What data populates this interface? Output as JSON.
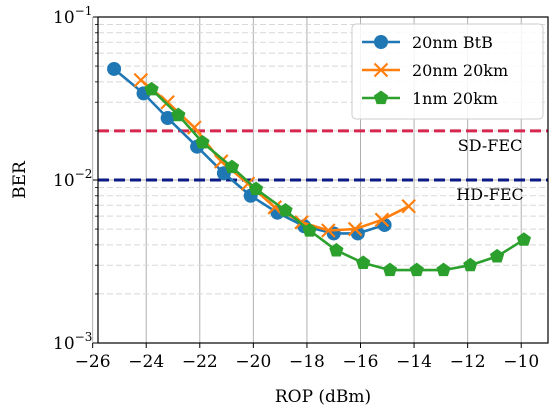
{
  "chart_data": {
    "type": "line",
    "xlabel": "ROP (dBm)",
    "ylabel": "BER",
    "xlim": [
      -25.8,
      -9.0
    ],
    "ylim": [
      0.001,
      0.1
    ],
    "yscale": "log",
    "grid": true,
    "legend_position": "top-right",
    "xticks": [
      -26,
      -24,
      -22,
      -20,
      -18,
      -16,
      -14,
      -12,
      -10
    ],
    "xtick_labels": [
      "−26",
      "−24",
      "−22",
      "−20",
      "−18",
      "−16",
      "−14",
      "−12",
      "−10"
    ],
    "yticks": [
      {
        "value": 0.1,
        "base": "10",
        "exp": "−1"
      },
      {
        "value": 0.01,
        "base": "10",
        "exp": "−2"
      },
      {
        "value": 0.001,
        "base": "10",
        "exp": "−3"
      }
    ],
    "series": [
      {
        "name": "20nm BtB",
        "color": "#1f77b4",
        "marker": "circle",
        "x": [
          -25.2,
          -24.1,
          -23.2,
          -22.1,
          -21.1,
          -20.1,
          -19.1,
          -18.1,
          -17.0,
          -16.1,
          -15.1
        ],
        "y": [
          0.048,
          0.034,
          0.024,
          0.016,
          0.011,
          0.008,
          0.0063,
          0.0052,
          0.0047,
          0.0047,
          0.0053
        ]
      },
      {
        "name": "20nm 20km",
        "color": "#ff7f0e",
        "marker": "x",
        "x": [
          -24.2,
          -23.2,
          -22.2,
          -21.2,
          -20.2,
          -19.2,
          -18.2,
          -17.2,
          -16.2,
          -15.2,
          -14.2
        ],
        "y": [
          0.041,
          0.03,
          0.021,
          0.013,
          0.0095,
          0.0068,
          0.0055,
          0.0049,
          0.005,
          0.0057,
          0.0069
        ]
      },
      {
        "name": "1nm 20km",
        "color": "#2ca02c",
        "marker": "pentagon",
        "x": [
          -23.8,
          -22.8,
          -21.9,
          -20.8,
          -19.9,
          -18.8,
          -17.9,
          -16.9,
          -15.9,
          -14.9,
          -13.9,
          -12.9,
          -11.9,
          -10.9,
          -9.9
        ],
        "y": [
          0.036,
          0.025,
          0.017,
          0.012,
          0.0088,
          0.0065,
          0.0049,
          0.0037,
          0.0031,
          0.0028,
          0.0028,
          0.0028,
          0.003,
          0.0034,
          0.0043
        ]
      }
    ],
    "thresholds": [
      {
        "label": "SD-FEC",
        "value": 0.02,
        "color": "#d62750"
      },
      {
        "label": "HD-FEC",
        "value": 0.01,
        "color": "#0b1a86"
      }
    ]
  }
}
